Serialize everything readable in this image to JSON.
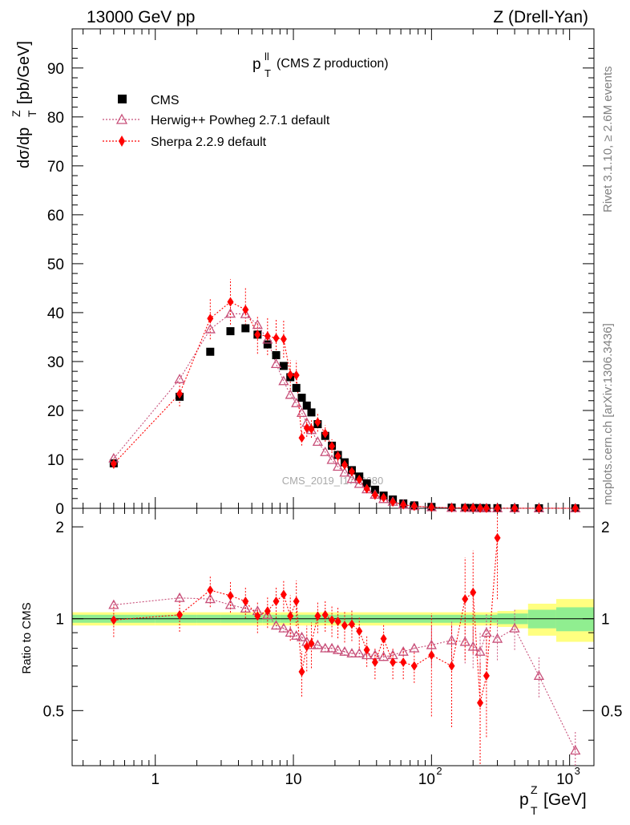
{
  "header": {
    "left": "13000 GeV pp",
    "right": "Z (Drell-Yan)"
  },
  "side": {
    "rivet": "Rivet 3.1.10, ≥ 2.6M events",
    "site": "mcplots.cern.ch [arXiv:1306.3436]"
  },
  "colors": {
    "cms": "#000000",
    "herwig": "#c8507a",
    "sherpa": "#ff0000",
    "band_inner": "#90ee90",
    "band_outer": "#ffff80"
  },
  "chart_data": [
    {
      "type": "scatter",
      "title_main": "p",
      "title_sup": "ll",
      "title_sub": "T",
      "title_rest": "(CMS Z production)",
      "ylabel_main": "dσ/dp",
      "ylabel_sup": "Z",
      "ylabel_sub": "T",
      "ylabel_rest": "[pb/GeV]",
      "xscale": "log",
      "xlim": [
        0.25,
        1500
      ],
      "ylim": [
        0,
        98
      ],
      "yticks": [
        0,
        10,
        20,
        30,
        40,
        50,
        60,
        70,
        80,
        90
      ],
      "watermark": "CMS_2019_I1753680",
      "legend_position": "top-left",
      "legend": [
        "CMS",
        "Herwig++ Powheg 2.7.1 default",
        "Sherpa 2.2.9 default"
      ],
      "x": [
        0.5,
        1.5,
        2.5,
        3.5,
        4.5,
        5.5,
        6.5,
        7.5,
        8.5,
        9.5,
        10.5,
        11.5,
        12.5,
        13.5,
        15,
        17,
        19,
        21,
        23.5,
        26.5,
        30,
        34,
        39,
        45,
        52.5,
        62.5,
        75,
        100,
        140,
        175,
        200,
        225,
        250,
        300,
        400,
        600,
        1100
      ],
      "series": [
        {
          "name": "CMS",
          "values": [
            9.2,
            22.8,
            32.0,
            36.2,
            36.8,
            35.5,
            33.5,
            31.3,
            29.1,
            26.8,
            24.6,
            22.6,
            21.0,
            19.6,
            17.2,
            14.8,
            12.8,
            10.9,
            9.4,
            7.8,
            6.5,
            5.1,
            3.8,
            2.6,
            1.8,
            1.0,
            0.6,
            0.28,
            0.14,
            0.09,
            0.07,
            0.05,
            0.04,
            0.03,
            0.016,
            0.006,
            0.001
          ]
        },
        {
          "name": "Herwig++ Powheg 2.7.1 default",
          "values": [
            10.2,
            26.4,
            36.6,
            39.8,
            39.7,
            37.5,
            34.5,
            29.5,
            26.0,
            23.2,
            21.5,
            19.5,
            17.5,
            16.0,
            13.6,
            11.5,
            9.9,
            8.5,
            7.3,
            6.0,
            5.0,
            3.9,
            2.8,
            1.9,
            1.35,
            0.78,
            0.46,
            0.23,
            0.12,
            0.08,
            0.06,
            0.04,
            0.034,
            0.025,
            0.015,
            0.004,
            0.0005
          ]
        },
        {
          "name": "Sherpa 2.2.9 default",
          "values": [
            9.1,
            23.4,
            38.8,
            42.2,
            40.6,
            35.5,
            35.2,
            34.8,
            34.6,
            27.3,
            27.2,
            14.4,
            16.4,
            16.2,
            17.6,
            15.3,
            12.7,
            10.7,
            8.9,
            7.5,
            5.9,
            4.0,
            2.7,
            2.2,
            1.3,
            0.72,
            0.43,
            0.21,
            0.1,
            0.08,
            0.09,
            0.03,
            0.027,
            0.05,
            0.02,
            0.005,
            0.001
          ]
        }
      ]
    },
    {
      "type": "scatter",
      "ylabel": "Ratio to CMS",
      "xlabel_main": "p",
      "xlabel_sup": "Z",
      "xlabel_sub": "T",
      "xlabel_rest": "[GeV]",
      "xscale": "log",
      "xlim": [
        0.25,
        1500
      ],
      "ylim": [
        0.33,
        2.3
      ],
      "yticks": [
        0.5,
        1,
        2
      ],
      "ytick_labels": [
        "0.5",
        "1",
        "2"
      ],
      "xtick_labels": [
        "1",
        "10",
        "10",
        "10"
      ],
      "xtick_sups": [
        "",
        "",
        "2",
        "3"
      ],
      "x": [
        0.5,
        1.5,
        2.5,
        3.5,
        4.5,
        5.5,
        6.5,
        7.5,
        8.5,
        9.5,
        10.5,
        11.5,
        12.5,
        13.5,
        15,
        17,
        19,
        21,
        23.5,
        26.5,
        30,
        34,
        39,
        45,
        52.5,
        62.5,
        75,
        100,
        140,
        175,
        200,
        225,
        250,
        300,
        400,
        600,
        1100
      ],
      "series": [
        {
          "name": "Herwig++ Powheg 2.7.1 default",
          "values": [
            1.11,
            1.17,
            1.16,
            1.11,
            1.08,
            1.06,
            1.03,
            0.95,
            0.93,
            0.9,
            0.88,
            0.87,
            0.84,
            0.82,
            0.82,
            0.8,
            0.8,
            0.79,
            0.78,
            0.77,
            0.77,
            0.76,
            0.76,
            0.75,
            0.76,
            0.78,
            0.8,
            0.82,
            0.85,
            0.84,
            0.81,
            0.78,
            0.9,
            0.86,
            0.93,
            0.65,
            0.37
          ]
        },
        {
          "name": "Sherpa 2.2.9 default",
          "values": [
            0.99,
            1.03,
            1.24,
            1.19,
            1.14,
            1.02,
            1.06,
            1.14,
            1.2,
            1.02,
            1.14,
            0.67,
            0.81,
            0.83,
            1.02,
            1.03,
            0.99,
            0.98,
            0.95,
            0.96,
            0.91,
            0.79,
            0.72,
            0.86,
            0.72,
            0.72,
            0.7,
            0.76,
            0.7,
            1.16,
            1.22,
            0.53,
            0.65,
            1.84,
            null,
            null,
            null
          ]
        }
      ]
    }
  ]
}
